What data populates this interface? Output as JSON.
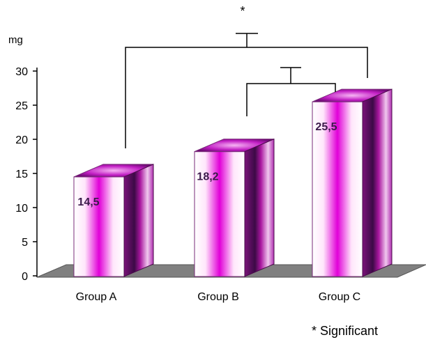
{
  "chart_data": {
    "type": "bar",
    "categories": [
      "Group A",
      "Group B",
      "Group C"
    ],
    "values": [
      14.5,
      18.2,
      25.5
    ],
    "data_labels": [
      "14,5",
      "18,2",
      "25,5"
    ],
    "ylabel": "mg",
    "ylim": [
      0,
      30
    ],
    "yticks": [
      "0",
      "5",
      "10",
      "15",
      "20",
      "25",
      "30"
    ],
    "grid": false,
    "style": "3d-bars",
    "bar_colors": {
      "front_edge": "#ffffff",
      "front_center": "#e100d8",
      "top": "#c21ec4",
      "side_dark": "#3c0a46",
      "side_mid": "#a9169f",
      "floor": "#808080"
    },
    "annotations": [
      {
        "label": "*",
        "from": "Group A",
        "to": "Group C"
      },
      {
        "label": "",
        "from": "Group B",
        "to": "Group C"
      }
    ],
    "footnote": "* Significant"
  }
}
